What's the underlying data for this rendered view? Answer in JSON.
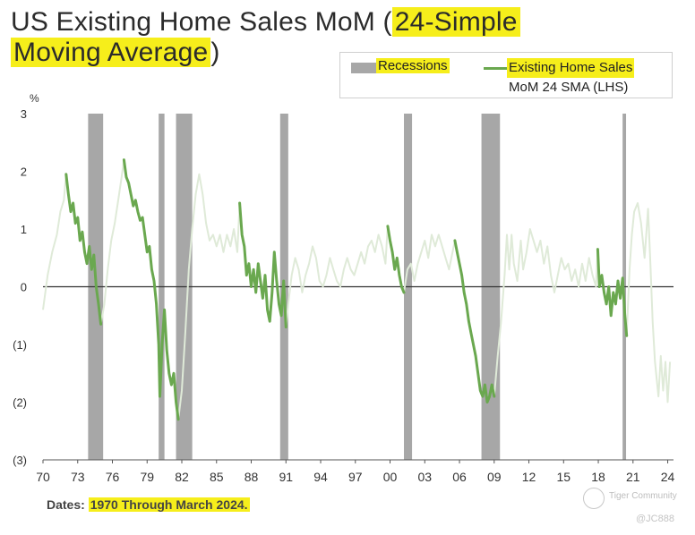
{
  "title": {
    "part1": "US Existing Home Sales MoM (",
    "part2": "24-Simple",
    "part3": "Moving Average",
    "part4": ")"
  },
  "legend": {
    "recessions_label": "Recessions",
    "series_label_line1": "Existing Home Sales",
    "series_label_line2": "MoM 24 SMA (LHS)"
  },
  "footer": {
    "prefix": "Dates: ",
    "range": "1970 Through March 2024."
  },
  "watermark": {
    "brand": "Tiger Community",
    "handle": "@JC888"
  },
  "colors": {
    "line": "#6aa84f",
    "line_faded": "#dfead8",
    "recession": "#a7a7a7",
    "highlight": "#f6ee1b"
  },
  "chart_data": {
    "type": "line",
    "ylabel": "%",
    "ylim": [
      -3,
      3
    ],
    "xlim": [
      1970,
      2024.5
    ],
    "y_ticks": [
      {
        "value": 3,
        "label": "3"
      },
      {
        "value": 2,
        "label": "2"
      },
      {
        "value": 1,
        "label": "1"
      },
      {
        "value": 0,
        "label": "0"
      },
      {
        "value": -1,
        "label": "(1)"
      },
      {
        "value": -2,
        "label": "(2)"
      },
      {
        "value": -3,
        "label": "(3)"
      }
    ],
    "x_ticks": [
      {
        "value": 1970,
        "label": "70"
      },
      {
        "value": 1973,
        "label": "73"
      },
      {
        "value": 1976,
        "label": "76"
      },
      {
        "value": 1979,
        "label": "79"
      },
      {
        "value": 1982,
        "label": "82"
      },
      {
        "value": 1985,
        "label": "85"
      },
      {
        "value": 1988,
        "label": "88"
      },
      {
        "value": 1991,
        "label": "91"
      },
      {
        "value": 1994,
        "label": "94"
      },
      {
        "value": 1997,
        "label": "97"
      },
      {
        "value": 2000,
        "label": "00"
      },
      {
        "value": 2003,
        "label": "03"
      },
      {
        "value": 2006,
        "label": "06"
      },
      {
        "value": 2009,
        "label": "09"
      },
      {
        "value": 2012,
        "label": "12"
      },
      {
        "value": 2015,
        "label": "15"
      },
      {
        "value": 2018,
        "label": "18"
      },
      {
        "value": 2021,
        "label": "21"
      },
      {
        "value": 2024,
        "label": "24"
      }
    ],
    "recessions": [
      [
        1973.9,
        1975.2
      ],
      [
        1980.0,
        1980.5
      ],
      [
        1981.5,
        1982.9
      ],
      [
        1990.5,
        1991.2
      ],
      [
        2001.2,
        2001.9
      ],
      [
        2007.9,
        2009.5
      ],
      [
        2020.1,
        2020.4
      ]
    ],
    "series": [
      {
        "name": "Existing Home Sales MoM 24 SMA (LHS)",
        "points": [
          [
            1970.0,
            -0.4
          ],
          [
            1970.4,
            0.2
          ],
          [
            1970.8,
            0.6
          ],
          [
            1971.2,
            0.9
          ],
          [
            1971.5,
            1.3
          ],
          [
            1971.8,
            1.5
          ],
          [
            1972.0,
            1.95
          ],
          [
            1972.2,
            1.6
          ],
          [
            1972.4,
            1.3
          ],
          [
            1972.6,
            1.45
          ],
          [
            1972.8,
            1.1
          ],
          [
            1973.0,
            1.2
          ],
          [
            1973.2,
            0.8
          ],
          [
            1973.4,
            0.95
          ],
          [
            1973.6,
            0.6
          ],
          [
            1973.8,
            0.4
          ],
          [
            1974.0,
            0.7
          ],
          [
            1974.2,
            0.3
          ],
          [
            1974.4,
            0.55
          ],
          [
            1974.6,
            0.0
          ],
          [
            1974.8,
            -0.3
          ],
          [
            1975.0,
            -0.65
          ],
          [
            1975.3,
            -0.3
          ],
          [
            1975.6,
            0.3
          ],
          [
            1975.9,
            0.8
          ],
          [
            1976.2,
            1.1
          ],
          [
            1976.5,
            1.5
          ],
          [
            1976.8,
            1.9
          ],
          [
            1977.0,
            2.2
          ],
          [
            1977.2,
            1.9
          ],
          [
            1977.4,
            1.8
          ],
          [
            1977.6,
            1.6
          ],
          [
            1977.8,
            1.4
          ],
          [
            1978.0,
            1.5
          ],
          [
            1978.2,
            1.3
          ],
          [
            1978.4,
            1.15
          ],
          [
            1978.6,
            1.2
          ],
          [
            1978.8,
            0.9
          ],
          [
            1979.0,
            0.6
          ],
          [
            1979.2,
            0.7
          ],
          [
            1979.4,
            0.3
          ],
          [
            1979.6,
            0.1
          ],
          [
            1979.8,
            -0.3
          ],
          [
            1980.0,
            -1.0
          ],
          [
            1980.1,
            -1.9
          ],
          [
            1980.3,
            -1.0
          ],
          [
            1980.5,
            -0.4
          ],
          [
            1980.7,
            -1.1
          ],
          [
            1980.9,
            -1.5
          ],
          [
            1981.1,
            -1.7
          ],
          [
            1981.3,
            -1.5
          ],
          [
            1981.5,
            -2.0
          ],
          [
            1981.7,
            -2.3
          ],
          [
            1982.0,
            -1.8
          ],
          [
            1982.3,
            -0.8
          ],
          [
            1982.6,
            0.3
          ],
          [
            1982.9,
            1.0
          ],
          [
            1983.2,
            1.6
          ],
          [
            1983.5,
            1.95
          ],
          [
            1983.8,
            1.6
          ],
          [
            1984.1,
            1.1
          ],
          [
            1984.4,
            0.8
          ],
          [
            1984.7,
            0.9
          ],
          [
            1985.0,
            0.7
          ],
          [
            1985.3,
            0.9
          ],
          [
            1985.6,
            0.6
          ],
          [
            1985.9,
            0.9
          ],
          [
            1986.2,
            0.7
          ],
          [
            1986.5,
            1.0
          ],
          [
            1986.8,
            0.6
          ],
          [
            1987.0,
            1.45
          ],
          [
            1987.2,
            0.9
          ],
          [
            1987.4,
            0.7
          ],
          [
            1987.6,
            0.2
          ],
          [
            1987.8,
            0.4
          ],
          [
            1988.0,
            0.0
          ],
          [
            1988.2,
            0.3
          ],
          [
            1988.4,
            -0.1
          ],
          [
            1988.6,
            0.4
          ],
          [
            1988.8,
            0.1
          ],
          [
            1989.0,
            -0.2
          ],
          [
            1989.2,
            0.2
          ],
          [
            1989.4,
            -0.4
          ],
          [
            1989.6,
            -0.6
          ],
          [
            1989.8,
            -0.1
          ],
          [
            1990.0,
            0.6
          ],
          [
            1990.2,
            0.1
          ],
          [
            1990.4,
            -0.3
          ],
          [
            1990.6,
            -0.5
          ],
          [
            1990.8,
            0.1
          ],
          [
            1991.0,
            -0.7
          ],
          [
            1991.2,
            -0.3
          ],
          [
            1991.5,
            0.2
          ],
          [
            1991.8,
            0.5
          ],
          [
            1992.1,
            0.3
          ],
          [
            1992.4,
            -0.1
          ],
          [
            1992.7,
            0.2
          ],
          [
            1993.0,
            0.4
          ],
          [
            1993.3,
            0.7
          ],
          [
            1993.6,
            0.5
          ],
          [
            1993.9,
            0.1
          ],
          [
            1994.2,
            0.0
          ],
          [
            1994.5,
            0.2
          ],
          [
            1994.8,
            0.5
          ],
          [
            1995.1,
            0.3
          ],
          [
            1995.4,
            0.1
          ],
          [
            1995.7,
            0.0
          ],
          [
            1996.0,
            0.3
          ],
          [
            1996.3,
            0.5
          ],
          [
            1996.6,
            0.3
          ],
          [
            1996.9,
            0.2
          ],
          [
            1997.2,
            0.4
          ],
          [
            1997.5,
            0.6
          ],
          [
            1997.8,
            0.4
          ],
          [
            1998.1,
            0.7
          ],
          [
            1998.4,
            0.8
          ],
          [
            1998.7,
            0.6
          ],
          [
            1999.0,
            0.9
          ],
          [
            1999.3,
            0.7
          ],
          [
            1999.6,
            0.4
          ],
          [
            1999.8,
            1.05
          ],
          [
            2000.0,
            0.8
          ],
          [
            2000.2,
            0.6
          ],
          [
            2000.4,
            0.3
          ],
          [
            2000.6,
            0.5
          ],
          [
            2000.8,
            0.2
          ],
          [
            2001.0,
            0.0
          ],
          [
            2001.2,
            -0.1
          ],
          [
            2001.5,
            0.3
          ],
          [
            2001.8,
            0.4
          ],
          [
            2002.1,
            0.1
          ],
          [
            2002.4,
            0.4
          ],
          [
            2002.7,
            0.6
          ],
          [
            2003.0,
            0.8
          ],
          [
            2003.3,
            0.5
          ],
          [
            2003.6,
            0.9
          ],
          [
            2003.9,
            0.7
          ],
          [
            2004.2,
            0.9
          ],
          [
            2004.5,
            0.7
          ],
          [
            2004.8,
            0.5
          ],
          [
            2005.1,
            0.3
          ],
          [
            2005.4,
            0.6
          ],
          [
            2005.6,
            0.8
          ],
          [
            2005.8,
            0.6
          ],
          [
            2006.0,
            0.4
          ],
          [
            2006.2,
            0.2
          ],
          [
            2006.4,
            -0.1
          ],
          [
            2006.6,
            -0.3
          ],
          [
            2006.8,
            -0.6
          ],
          [
            2007.0,
            -0.8
          ],
          [
            2007.2,
            -1.0
          ],
          [
            2007.4,
            -1.2
          ],
          [
            2007.6,
            -1.5
          ],
          [
            2007.8,
            -1.8
          ],
          [
            2008.0,
            -1.9
          ],
          [
            2008.2,
            -1.7
          ],
          [
            2008.4,
            -2.0
          ],
          [
            2008.6,
            -1.9
          ],
          [
            2008.8,
            -1.7
          ],
          [
            2009.0,
            -1.9
          ],
          [
            2009.3,
            -1.2
          ],
          [
            2009.6,
            -0.6
          ],
          [
            2009.9,
            0.2
          ],
          [
            2010.1,
            0.9
          ],
          [
            2010.3,
            0.3
          ],
          [
            2010.5,
            0.9
          ],
          [
            2010.7,
            0.4
          ],
          [
            2011.0,
            0.1
          ],
          [
            2011.3,
            0.8
          ],
          [
            2011.5,
            0.3
          ],
          [
            2011.8,
            0.6
          ],
          [
            2012.1,
            1.0
          ],
          [
            2012.4,
            0.8
          ],
          [
            2012.7,
            0.6
          ],
          [
            2013.0,
            0.8
          ],
          [
            2013.3,
            0.4
          ],
          [
            2013.6,
            0.7
          ],
          [
            2013.9,
            0.2
          ],
          [
            2014.2,
            -0.1
          ],
          [
            2014.5,
            0.2
          ],
          [
            2014.8,
            0.5
          ],
          [
            2015.1,
            0.3
          ],
          [
            2015.4,
            0.4
          ],
          [
            2015.7,
            0.1
          ],
          [
            2016.0,
            0.3
          ],
          [
            2016.3,
            0.0
          ],
          [
            2016.6,
            0.4
          ],
          [
            2016.9,
            0.1
          ],
          [
            2017.2,
            0.5
          ],
          [
            2017.5,
            0.2
          ],
          [
            2017.8,
            0.0
          ],
          [
            2017.95,
            0.65
          ],
          [
            2018.1,
            0.0
          ],
          [
            2018.3,
            0.2
          ],
          [
            2018.5,
            -0.1
          ],
          [
            2018.7,
            -0.3
          ],
          [
            2018.9,
            0.0
          ],
          [
            2019.1,
            -0.5
          ],
          [
            2019.3,
            -0.1
          ],
          [
            2019.5,
            -0.3
          ],
          [
            2019.7,
            0.1
          ],
          [
            2019.9,
            -0.2
          ],
          [
            2020.1,
            0.15
          ],
          [
            2020.3,
            -0.5
          ],
          [
            2020.45,
            -0.85
          ],
          [
            2020.7,
            0.3
          ],
          [
            2020.9,
            0.9
          ],
          [
            2021.1,
            1.3
          ],
          [
            2021.4,
            1.45
          ],
          [
            2021.7,
            1.1
          ],
          [
            2022.0,
            0.5
          ],
          [
            2022.3,
            1.35
          ],
          [
            2022.5,
            0.4
          ],
          [
            2022.7,
            -0.6
          ],
          [
            2022.9,
            -1.3
          ],
          [
            2023.2,
            -1.9
          ],
          [
            2023.4,
            -1.2
          ],
          [
            2023.6,
            -1.8
          ],
          [
            2023.8,
            -1.3
          ],
          [
            2024.0,
            -2.0
          ],
          [
            2024.2,
            -1.3
          ]
        ],
        "highlighted_ranges": [
          [
            1972.0,
            1975.0
          ],
          [
            1977.0,
            1981.7
          ],
          [
            1987.0,
            1991.0
          ],
          [
            1999.8,
            2001.2
          ],
          [
            2005.6,
            2009.0
          ],
          [
            2017.95,
            2020.45
          ]
        ]
      }
    ]
  }
}
